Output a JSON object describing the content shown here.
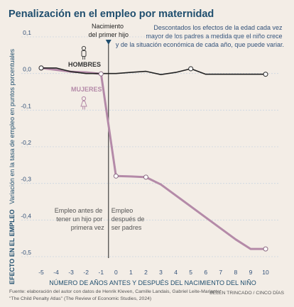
{
  "colors": {
    "hombres": "#222222",
    "mujeres": "#b48aa8",
    "background": "#f3ede6",
    "title": "#1f4e6e",
    "grid": "#cbd6e0"
  },
  "icons": [
    "man-icon",
    "woman-icon",
    "event-triangle-icon"
  ],
  "chart_data": {
    "type": "line",
    "title": "Penalización en el empleo por maternidad",
    "subtitle": "Descontados los efectos de la edad cada vez mayor de los padres a medida que el niño crece y de la situación económica de cada año, que puede variar.",
    "ylabel_bold": "EFECTO EN EL EMPLEO",
    "ylabel_rest": "Variación en la tasa de empleo en puntos porcentuales",
    "xlabel": "NÚMERO DE AÑOS ANTES Y DESPUÉS DEL NACIMIENTO DEL NIÑO",
    "x": [
      -5,
      -4,
      -3,
      -2,
      -1,
      0,
      1,
      2,
      3,
      4,
      5,
      6,
      7,
      8,
      9,
      10
    ],
    "x_tick_labels": [
      "-5",
      "-4",
      "-3",
      "-2",
      "-1",
      "0",
      "1",
      "2",
      "3",
      "4",
      "5",
      "6",
      "7",
      "8",
      "9",
      "10"
    ],
    "y_ticks": [
      0.1,
      0,
      -0.1,
      -0.2,
      -0.3,
      -0.4,
      -0.5
    ],
    "y_tick_labels": [
      "0,1",
      "0,0",
      "-0,1",
      "-0,2",
      "-0,3",
      "-0,4",
      "-0,5"
    ],
    "xlim": [
      -5.4,
      10.6
    ],
    "ylim": [
      -0.52,
      0.11
    ],
    "grid": true,
    "series": [
      {
        "name": "HOMBRES",
        "values": [
          0.015,
          0.015,
          0.005,
          0.0,
          0.0,
          0.0,
          0.003,
          0.006,
          -0.003,
          0.003,
          0.013,
          -0.002,
          -0.002,
          -0.002,
          -0.002,
          -0.002
        ],
        "markers": [
          -5,
          5,
          10
        ]
      },
      {
        "name": "MUJERES",
        "values": [
          0.015,
          0.01,
          0.005,
          0.003,
          -0.001,
          -0.28,
          -0.281,
          -0.283,
          -0.303,
          -0.333,
          -0.363,
          -0.393,
          -0.423,
          -0.453,
          -0.479,
          -0.479
        ],
        "markers": [
          -5,
          -1,
          0,
          2,
          10
        ]
      }
    ],
    "event": {
      "x": -0.5,
      "label_line1": "Nacimiento",
      "label_line2": "del primer hijo"
    },
    "annotations": {
      "before": [
        "Empleo antes de",
        "tener un hijo por",
        "primera vez"
      ],
      "after": [
        "Empleo",
        "después de",
        "ser padres"
      ]
    }
  },
  "footer": {
    "source_line1": "Fuente: elaboración del autor con datos de Henrik Kleven, Camille Landais, Gabriel Leite-Mariante:",
    "source_line2": "\"The Child Penalty Atlas\" (The Review of Economic Studies, 2024)",
    "credit": "BELÉN TRINCADO / CINCO DÍAS"
  }
}
